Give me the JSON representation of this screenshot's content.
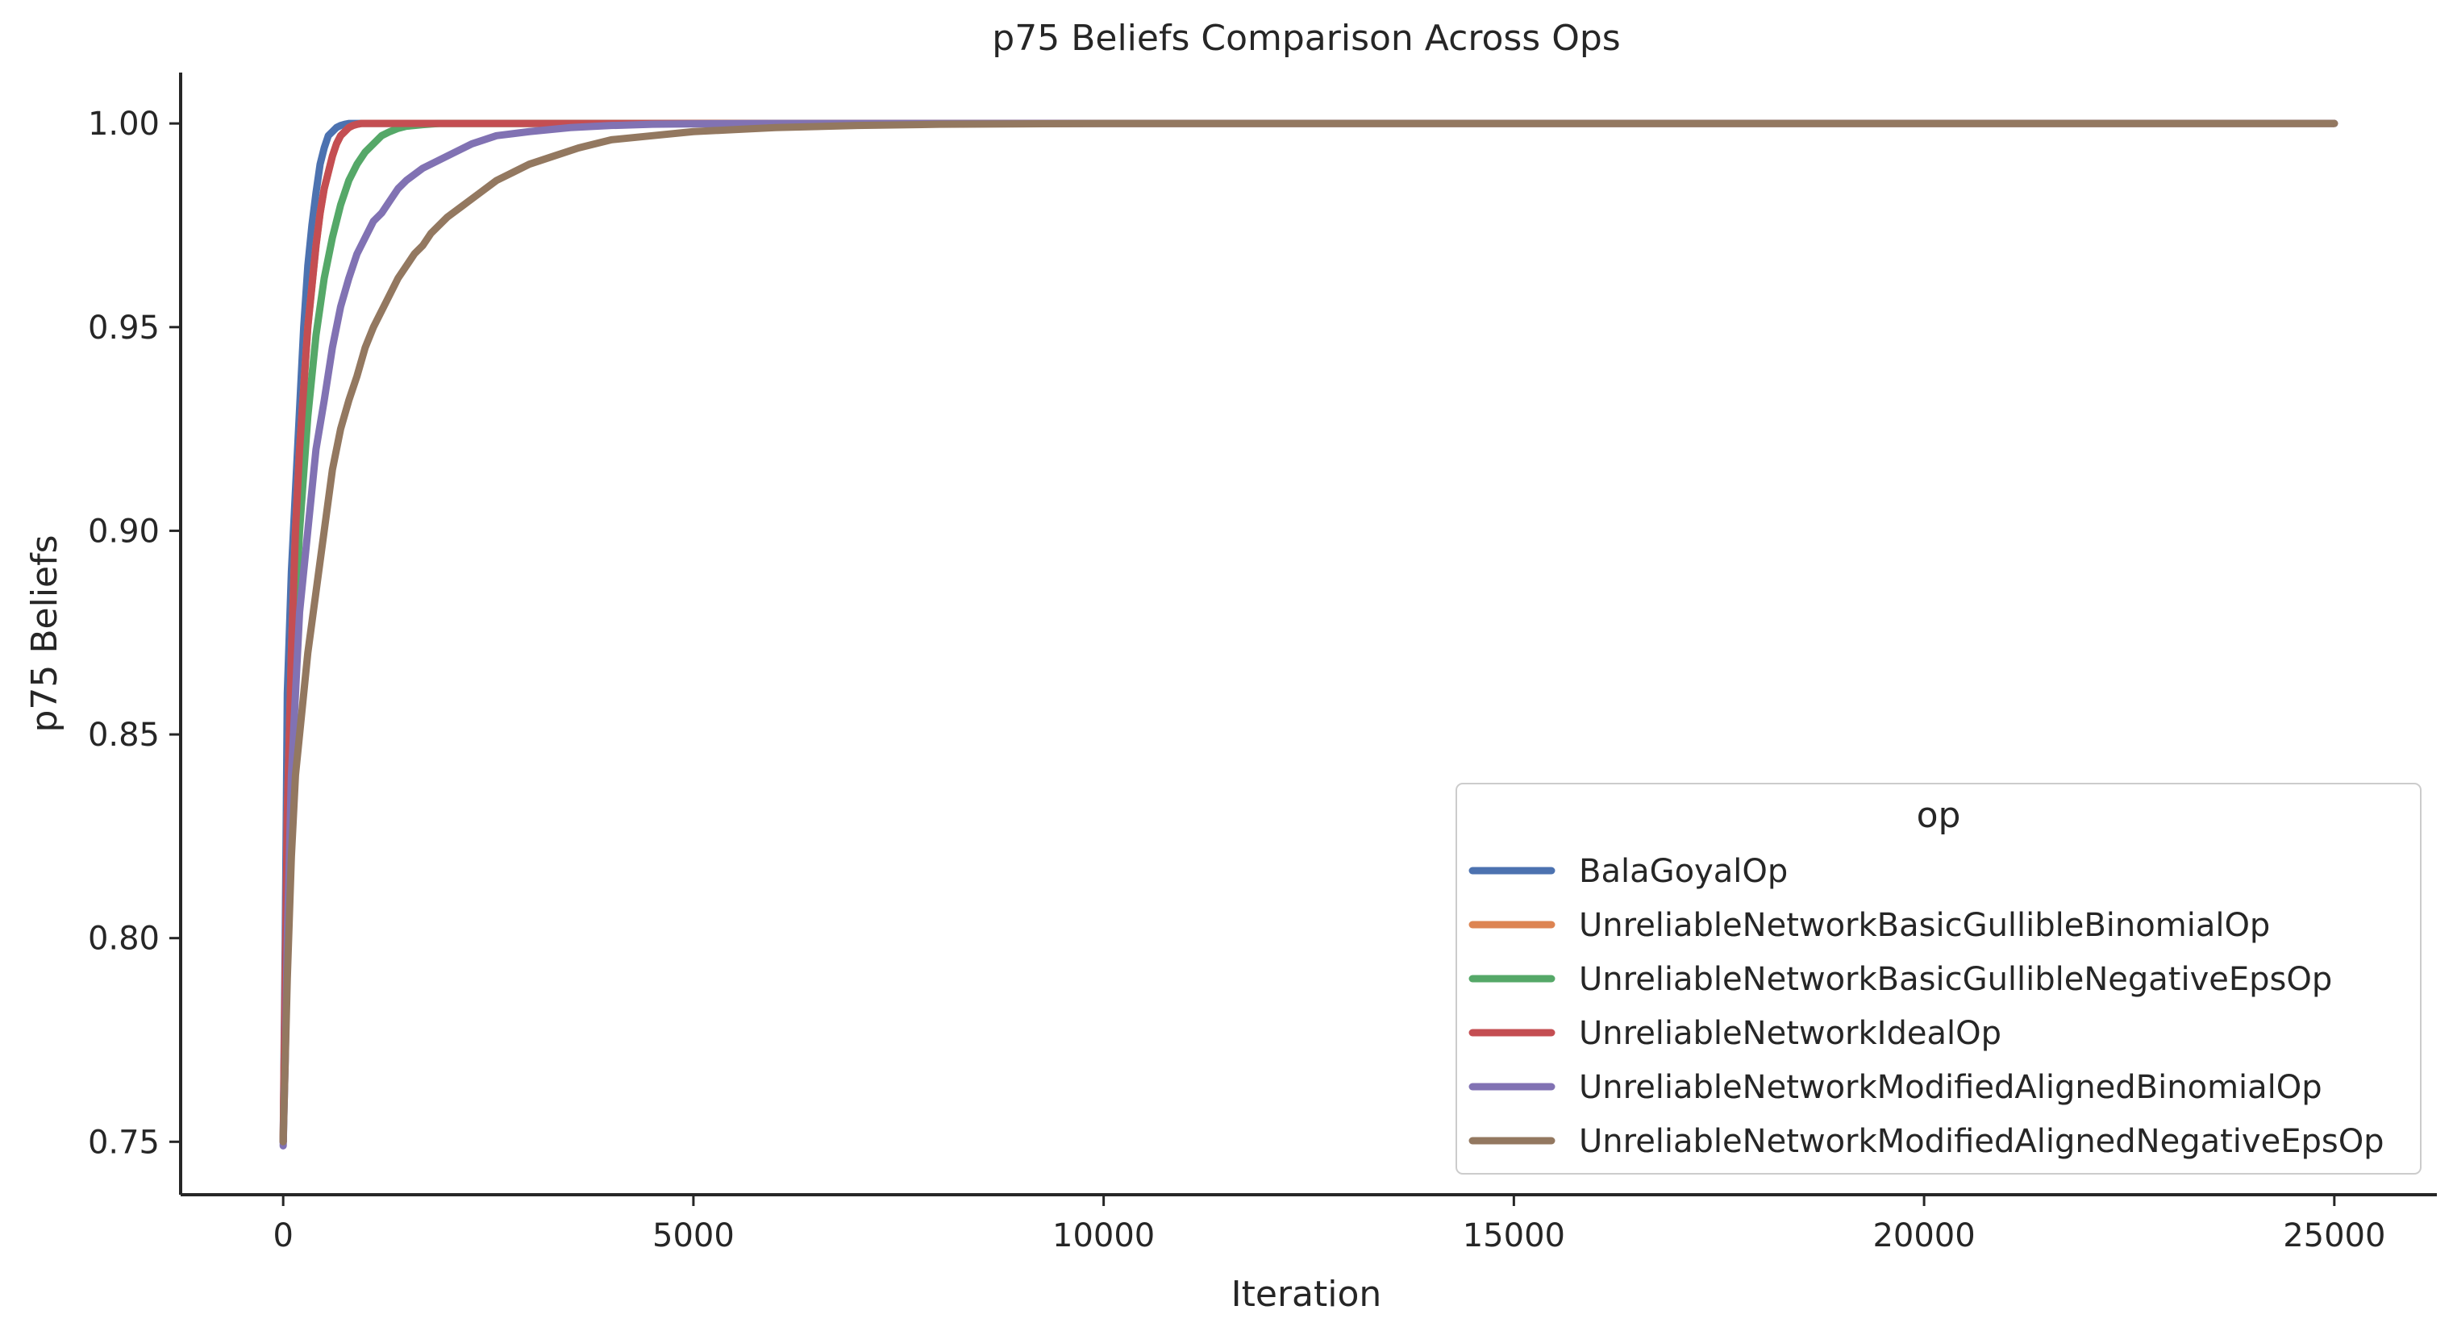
{
  "chart_data": {
    "type": "line",
    "title": "p75 Beliefs Comparison Across Ops",
    "xlabel": "Iteration",
    "ylabel": "p75 Beliefs",
    "xlim": [
      -1250,
      26250
    ],
    "ylim": [
      0.737,
      1.0125
    ],
    "xticks": [
      0,
      5000,
      10000,
      15000,
      20000,
      25000
    ],
    "xtick_labels": [
      "0",
      "5000",
      "10000",
      "15000",
      "20000",
      "25000"
    ],
    "yticks": [
      0.75,
      0.8,
      0.85,
      0.9,
      0.95,
      1.0
    ],
    "ytick_labels": [
      "0.75",
      "0.80",
      "0.85",
      "0.90",
      "0.95",
      "1.00"
    ],
    "grid": false,
    "legend": {
      "title": "op",
      "placement": "lower-right"
    },
    "series": [
      {
        "name": "BalaGoyalOp",
        "color": "#4c72b0",
        "x": [
          0,
          25,
          50,
          75,
          100,
          150,
          200,
          250,
          300,
          350,
          400,
          450,
          500,
          550,
          600,
          650,
          700,
          750,
          800,
          900,
          1000,
          1200,
          1500,
          2000,
          5000,
          10000,
          15000,
          20000,
          25000
        ],
        "y": [
          0.75,
          0.8,
          0.86,
          0.875,
          0.89,
          0.91,
          0.93,
          0.95,
          0.965,
          0.975,
          0.983,
          0.99,
          0.994,
          0.997,
          0.998,
          0.999,
          0.9995,
          0.9998,
          1.0,
          1.0,
          1.0,
          1.0,
          1.0,
          1.0,
          1.0,
          1.0,
          1.0,
          1.0,
          1.0
        ]
      },
      {
        "name": "UnreliableNetworkBasicGullibleBinomialOp",
        "color": "#dd8452",
        "x": [
          0,
          25,
          50,
          100,
          150,
          200,
          250,
          300,
          350,
          400,
          450,
          500,
          550,
          600,
          650,
          700,
          750,
          800,
          850,
          900,
          950,
          1000,
          1100,
          1200,
          1500,
          2000,
          5000,
          10000,
          15000,
          20000,
          25000
        ],
        "y": [
          0.75,
          0.79,
          0.83,
          0.87,
          0.9,
          0.92,
          0.935,
          0.95,
          0.96,
          0.97,
          0.978,
          0.984,
          0.988,
          0.992,
          0.995,
          0.997,
          0.998,
          0.999,
          0.9995,
          0.9998,
          1.0,
          1.0,
          1.0,
          1.0,
          1.0,
          1.0,
          1.0,
          1.0,
          1.0,
          1.0,
          1.0
        ]
      },
      {
        "name": "UnreliableNetworkBasicGullibleNegativeEpsOp",
        "color": "#55a868",
        "x": [
          0,
          25,
          50,
          100,
          150,
          200,
          300,
          400,
          500,
          600,
          700,
          800,
          900,
          1000,
          1100,
          1200,
          1300,
          1400,
          1500,
          1700,
          1900,
          2200,
          2600,
          3000,
          5000,
          10000,
          15000,
          20000,
          25000
        ],
        "y": [
          0.75,
          0.78,
          0.82,
          0.86,
          0.88,
          0.9,
          0.928,
          0.948,
          0.962,
          0.972,
          0.98,
          0.986,
          0.99,
          0.993,
          0.995,
          0.997,
          0.998,
          0.9988,
          0.9993,
          0.9997,
          1.0,
          1.0,
          1.0,
          1.0,
          1.0,
          1.0,
          1.0,
          1.0,
          1.0
        ]
      },
      {
        "name": "UnreliableNetworkIdealOp",
        "color": "#c44e52",
        "x": [
          0,
          25,
          50,
          100,
          150,
          200,
          250,
          300,
          350,
          400,
          450,
          500,
          550,
          600,
          650,
          700,
          750,
          800,
          850,
          900,
          950,
          1000,
          1050,
          1100,
          1200,
          1500,
          2000,
          5000,
          10000,
          15000,
          20000,
          25000
        ],
        "y": [
          0.75,
          0.79,
          0.83,
          0.87,
          0.9,
          0.92,
          0.935,
          0.95,
          0.96,
          0.97,
          0.978,
          0.984,
          0.988,
          0.992,
          0.995,
          0.997,
          0.998,
          0.999,
          0.9995,
          0.9998,
          1.0,
          1.0,
          1.0,
          1.0,
          1.0,
          1.0,
          1.0,
          1.0,
          1.0,
          1.0,
          1.0,
          1.0
        ]
      },
      {
        "name": "UnreliableNetworkModifiedAlignedBinomialOp",
        "color": "#8172b3",
        "x": [
          0,
          25,
          50,
          100,
          150,
          200,
          300,
          400,
          500,
          600,
          700,
          800,
          900,
          1000,
          1100,
          1200,
          1300,
          1400,
          1500,
          1700,
          1900,
          2100,
          2300,
          2600,
          3000,
          3500,
          4000,
          4500,
          5000,
          6000,
          7000,
          10000,
          15000,
          20000,
          25000
        ],
        "y": [
          0.749,
          0.77,
          0.8,
          0.84,
          0.86,
          0.88,
          0.9,
          0.92,
          0.932,
          0.945,
          0.955,
          0.962,
          0.968,
          0.972,
          0.976,
          0.978,
          0.981,
          0.984,
          0.986,
          0.989,
          0.991,
          0.993,
          0.995,
          0.997,
          0.998,
          0.999,
          0.9995,
          0.9998,
          0.9999,
          1.0,
          1.0,
          1.0,
          1.0,
          1.0,
          1.0
        ]
      },
      {
        "name": "UnreliableNetworkModifiedAlignedNegativeEpsOp",
        "color": "#937860",
        "x": [
          0,
          25,
          50,
          100,
          150,
          200,
          300,
          400,
          500,
          600,
          700,
          800,
          900,
          1000,
          1100,
          1200,
          1300,
          1400,
          1500,
          1600,
          1700,
          1800,
          2000,
          2200,
          2400,
          2600,
          2800,
          3000,
          3300,
          3600,
          4000,
          4500,
          5000,
          5500,
          6000,
          7000,
          8000,
          10000,
          15000,
          20000,
          25000
        ],
        "y": [
          0.75,
          0.77,
          0.79,
          0.82,
          0.84,
          0.85,
          0.87,
          0.885,
          0.9,
          0.915,
          0.925,
          0.932,
          0.938,
          0.945,
          0.95,
          0.954,
          0.958,
          0.962,
          0.965,
          0.968,
          0.97,
          0.973,
          0.977,
          0.98,
          0.983,
          0.986,
          0.988,
          0.99,
          0.992,
          0.994,
          0.996,
          0.997,
          0.998,
          0.9985,
          0.999,
          0.9995,
          0.9998,
          1.0,
          1.0,
          1.0,
          1.0
        ]
      }
    ]
  }
}
